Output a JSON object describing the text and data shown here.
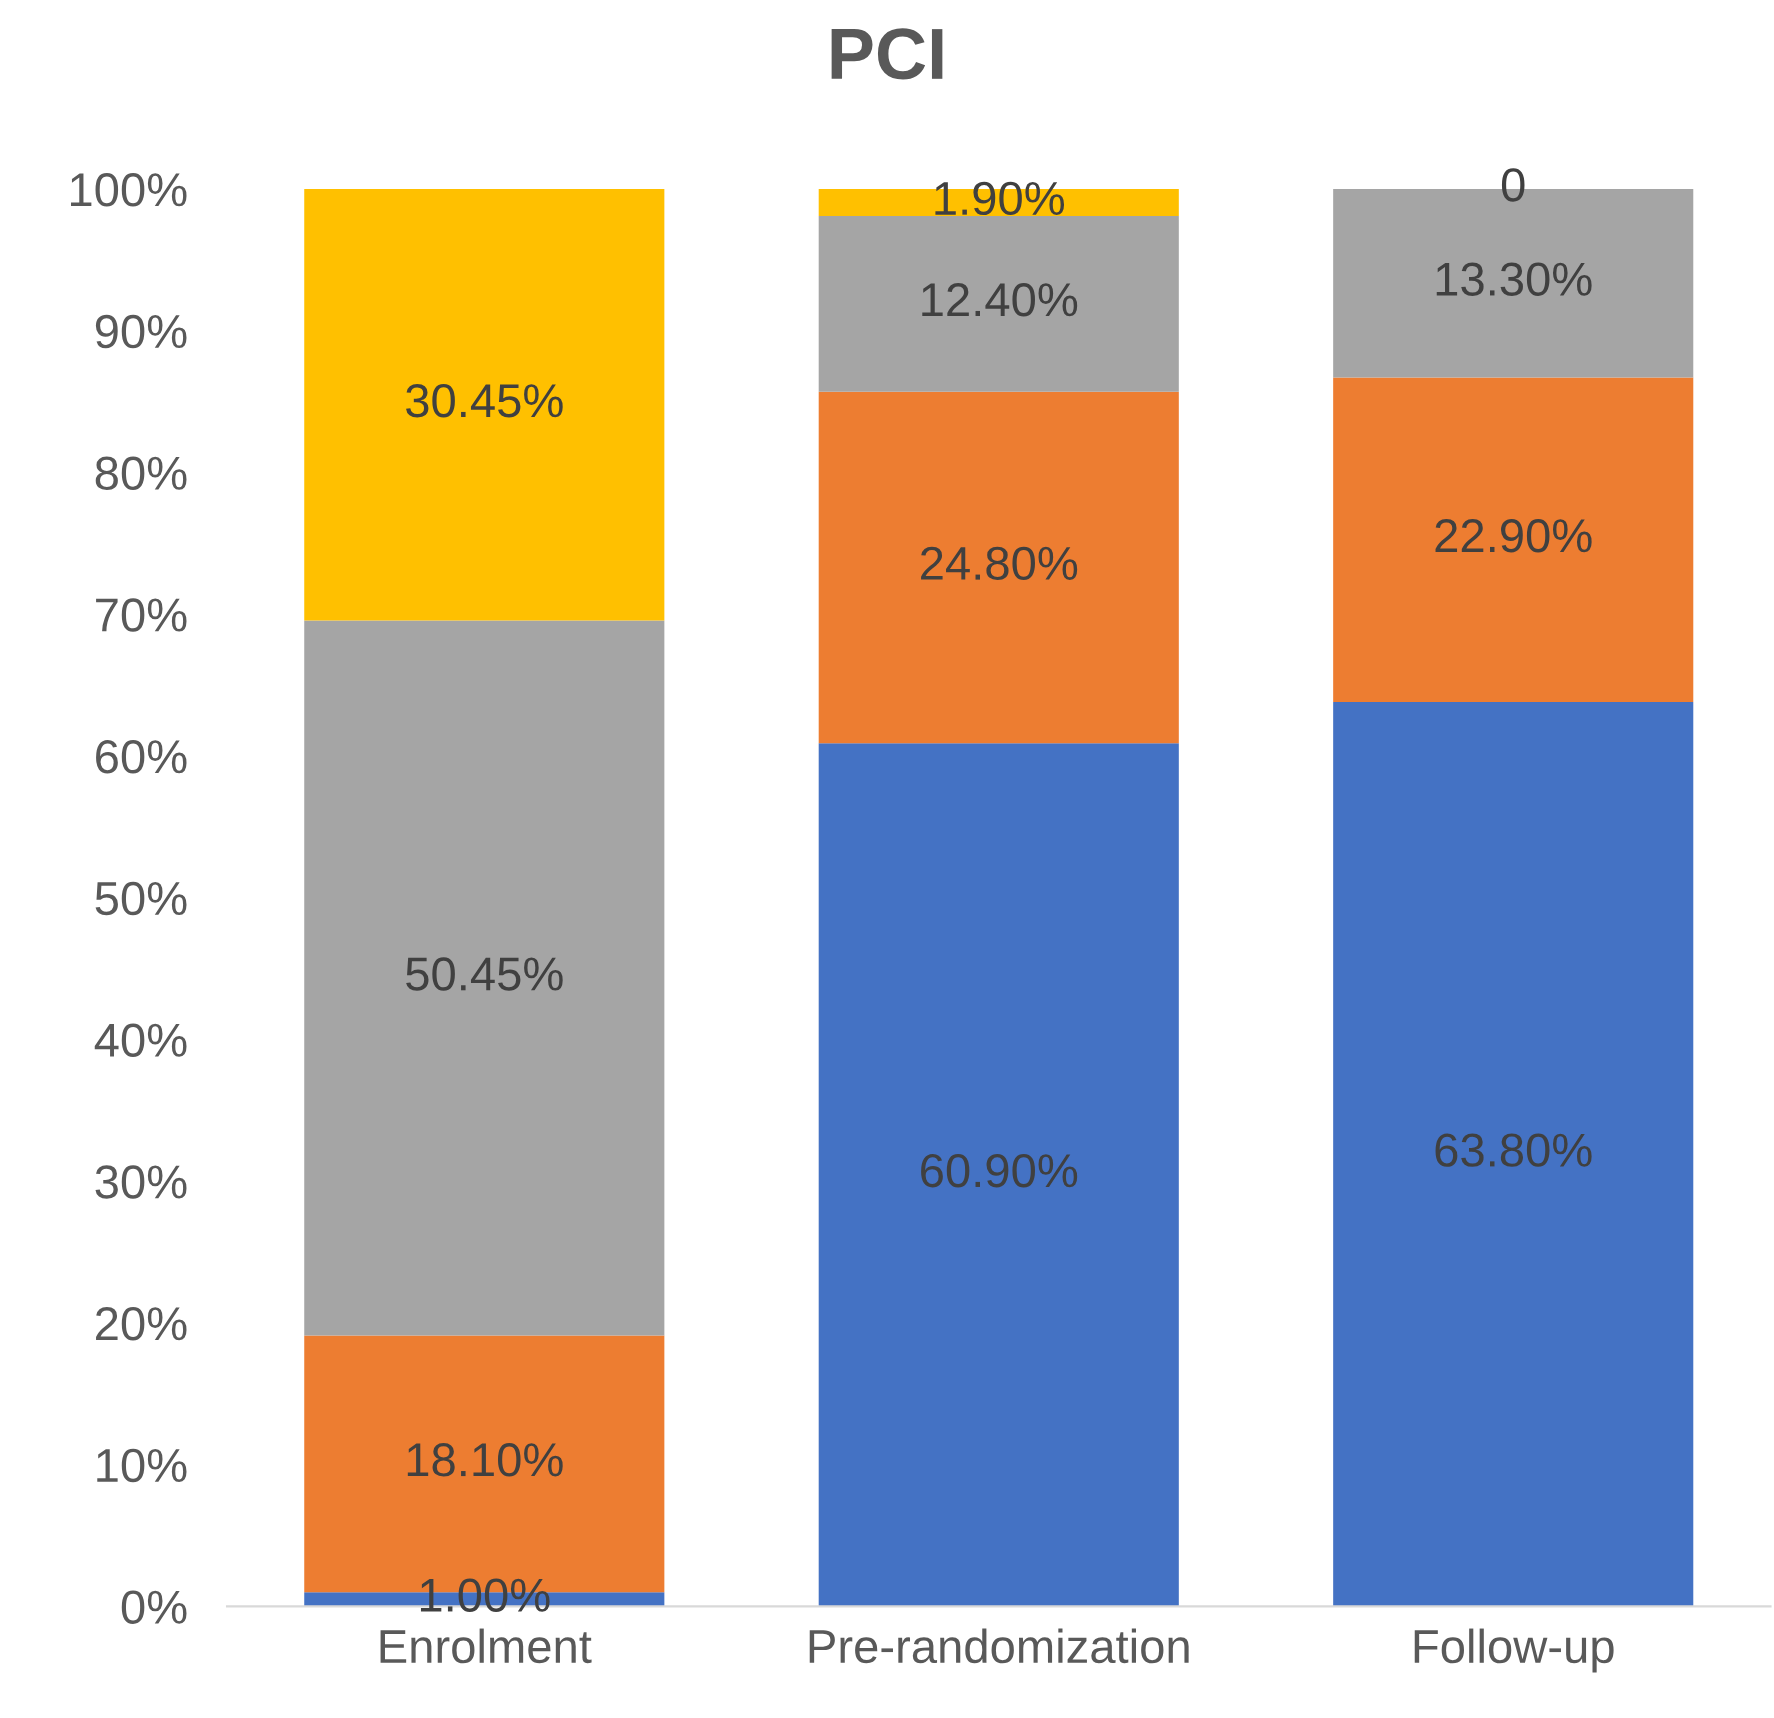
{
  "chart_data": {
    "type": "bar",
    "title": "PCI",
    "stacked": true,
    "categories": [
      "Enrolment",
      "Pre-randomization",
      "Follow-up"
    ],
    "series": [
      {
        "color": "#4472c4",
        "values": [
          1.0,
          60.9,
          63.8
        ],
        "value_labels": [
          "1.00%",
          "60.90%",
          "63.80%"
        ]
      },
      {
        "color": "#ed7d31",
        "values": [
          18.1,
          24.8,
          22.9
        ],
        "value_labels": [
          "18.10%",
          "24.80%",
          "22.90%"
        ]
      },
      {
        "color": "#a5a5a5",
        "values": [
          50.45,
          12.4,
          13.3
        ],
        "value_labels": [
          "50.45%",
          "12.40%",
          "13.30%"
        ]
      },
      {
        "color": "#ffc000",
        "values": [
          30.45,
          1.9,
          0
        ],
        "value_labels": [
          "30.45%",
          "1.90%",
          "0"
        ]
      }
    ],
    "ylim": [
      0,
      100
    ],
    "yticks": [
      {
        "value": 0,
        "label": "0%"
      },
      {
        "value": 10,
        "label": "10%"
      },
      {
        "value": 20,
        "label": "20%"
      },
      {
        "value": 30,
        "label": "30%"
      },
      {
        "value": 40,
        "label": "40%"
      },
      {
        "value": 50,
        "label": "50%"
      },
      {
        "value": 60,
        "label": "60%"
      },
      {
        "value": 70,
        "label": "70%"
      },
      {
        "value": 80,
        "label": "80%"
      },
      {
        "value": 90,
        "label": "90%"
      },
      {
        "value": 100,
        "label": "100%"
      }
    ],
    "grid": false
  }
}
